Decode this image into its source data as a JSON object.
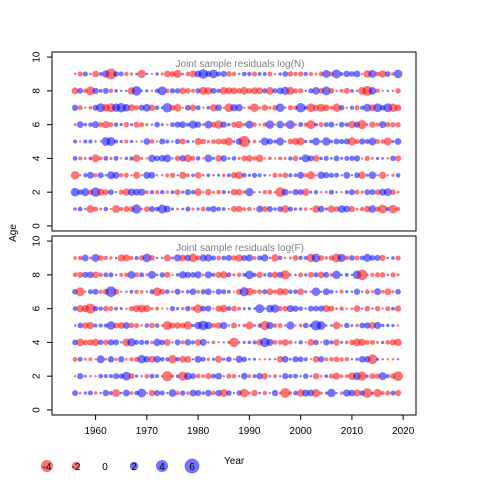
{
  "chart_data": {
    "type": "scatter",
    "ylabel": "Age",
    "xlabel": "Year",
    "colors": {
      "positive": "#0000ff",
      "negative": "#ff0000",
      "fill_alpha": 0.55
    },
    "x_range": [
      1956,
      2019
    ],
    "y_range": [
      1,
      9
    ],
    "xlim": [
      1951.5,
      2022.5
    ],
    "ylim": [
      -0.3,
      10.3
    ],
    "x_ticks": [
      1960,
      1970,
      1980,
      1990,
      2000,
      2010,
      2020
    ],
    "y_ticks": [
      0,
      2,
      4,
      6,
      8,
      10
    ],
    "panels": [
      {
        "title": "Joint sample residuals log(N)",
        "seed": 17
      },
      {
        "title": "Joint sample residuals log(F)",
        "seed": 91
      }
    ],
    "legend": [
      {
        "value": -4,
        "label": "-4"
      },
      {
        "value": -2,
        "label": "-2"
      },
      {
        "value": 0,
        "label": "0"
      },
      {
        "value": 2,
        "label": "2"
      },
      {
        "value": 4,
        "label": "4"
      },
      {
        "value": 6,
        "label": "6"
      }
    ]
  }
}
